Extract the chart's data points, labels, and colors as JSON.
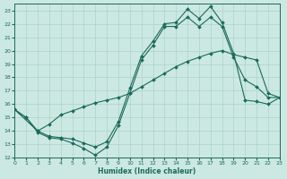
{
  "xlabel": "Humidex (Indice chaleur)",
  "bg_color": "#cce8e2",
  "line_color": "#1a6b5a",
  "grid_color": "#aad4c8",
  "xlim": [
    0,
    23
  ],
  "ylim": [
    12,
    23.5
  ],
  "xticks": [
    0,
    1,
    2,
    3,
    4,
    5,
    6,
    7,
    8,
    9,
    10,
    11,
    12,
    13,
    14,
    15,
    16,
    17,
    18,
    19,
    20,
    21,
    22,
    23
  ],
  "yticks": [
    12,
    13,
    14,
    15,
    16,
    17,
    18,
    19,
    20,
    21,
    22,
    23
  ],
  "line1_x": [
    0,
    1,
    2,
    3,
    4,
    5,
    6,
    7,
    8,
    9,
    10,
    11,
    12,
    13,
    14,
    15,
    16,
    17,
    18,
    19,
    20,
    21,
    22,
    23
  ],
  "line1_y": [
    15.6,
    15.0,
    14.0,
    13.6,
    13.5,
    13.4,
    13.1,
    12.8,
    13.2,
    14.7,
    17.2,
    19.6,
    20.7,
    22.0,
    22.1,
    23.1,
    22.4,
    23.3,
    22.1,
    19.8,
    16.3,
    16.2,
    16.0,
    16.5
  ],
  "line2_x": [
    0,
    1,
    2,
    3,
    4,
    5,
    6,
    7,
    8,
    9,
    10,
    11,
    12,
    13,
    14,
    15,
    16,
    17,
    18,
    19,
    20,
    21,
    22,
    23
  ],
  "line2_y": [
    15.6,
    15.0,
    13.9,
    13.5,
    13.4,
    13.1,
    12.7,
    12.2,
    12.8,
    14.4,
    16.8,
    19.3,
    20.4,
    21.8,
    21.8,
    22.5,
    21.8,
    22.5,
    21.8,
    19.5,
    17.8,
    17.3,
    16.5,
    16.5
  ],
  "line3_x": [
    0,
    2,
    3,
    4,
    5,
    6,
    7,
    8,
    9,
    10,
    11,
    12,
    13,
    14,
    15,
    16,
    17,
    18,
    19,
    20,
    21,
    22,
    23
  ],
  "line3_y": [
    15.6,
    14.0,
    14.5,
    15.2,
    15.5,
    15.8,
    16.1,
    16.3,
    16.5,
    16.8,
    17.3,
    17.8,
    18.3,
    18.8,
    19.2,
    19.5,
    19.8,
    20.0,
    19.7,
    19.5,
    19.3,
    16.8,
    16.5
  ]
}
